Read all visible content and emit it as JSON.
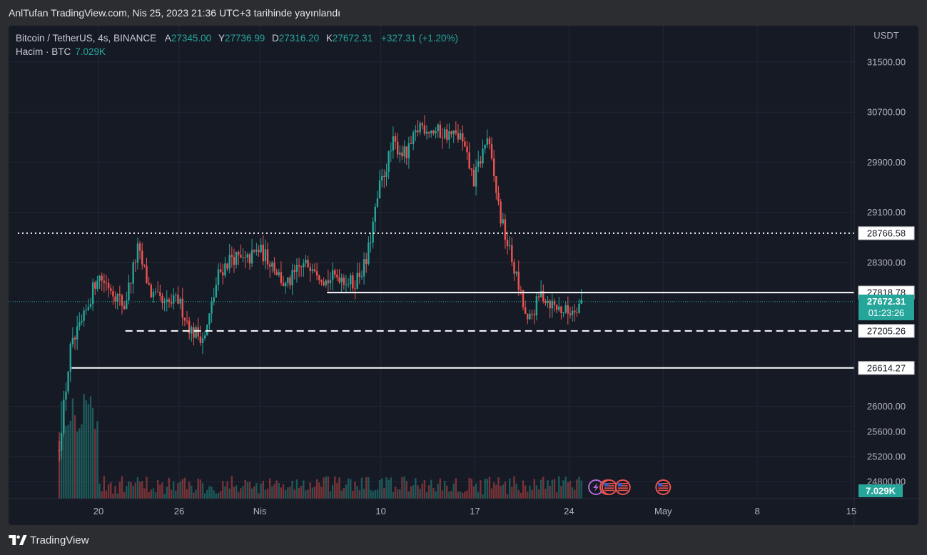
{
  "publication": "AnlTufan TradingView.com, Nis 25, 2023 21:36 UTC+3 tarihinde yayınlandı",
  "footer": {
    "brand": "TradingView",
    "logo_icon": "tradingview-logo-icon"
  },
  "legend": {
    "symbol": "Bitcoin / TetherUS, 4s, BINANCE",
    "open_label": "A",
    "open": "27345.00",
    "high_label": "Y",
    "high": "27736.99",
    "low_label": "D",
    "low": "27316.20",
    "close_label": "K",
    "close": "27672.31",
    "change": "+327.31 (+1.20%)",
    "volume_label": "Hacim · BTC",
    "volume": "7.029K"
  },
  "colors": {
    "background": "#161a25",
    "up": "#26a69a",
    "down": "#ef5350",
    "grid": "#232735",
    "text": "#b2b5be",
    "level": "#ffffff"
  },
  "chart_data": {
    "type": "candlestick",
    "currency": "USDT",
    "ylim": [
      24600,
      32000
    ],
    "y_ticks": [
      "31500.00",
      "30700.00",
      "29900.00",
      "29100.00",
      "28300.00",
      "26000.00",
      "25600.00",
      "25200.00",
      "24800.00"
    ],
    "x_ticks": [
      {
        "label": "20",
        "date": "2023-03-20"
      },
      {
        "label": "26",
        "date": "2023-03-26"
      },
      {
        "label": "Nis",
        "date": "2023-04-01"
      },
      {
        "label": "10",
        "date": "2023-04-10"
      },
      {
        "label": "17",
        "date": "2023-04-17"
      },
      {
        "label": "24",
        "date": "2023-04-24"
      },
      {
        "label": "May",
        "date": "2023-05-01"
      },
      {
        "label": "8",
        "date": "2023-05-08"
      },
      {
        "label": "15",
        "date": "2023-05-15"
      }
    ],
    "price_path": [
      [
        "2023-03-17",
        25100
      ],
      [
        "2023-03-18",
        26900
      ],
      [
        "2023-03-19",
        27400
      ],
      [
        "2023-03-20",
        28100
      ],
      [
        "2023-03-21",
        27900
      ],
      [
        "2023-03-22",
        27600
      ],
      [
        "2023-03-23",
        28500
      ],
      [
        "2023-03-24",
        27800
      ],
      [
        "2023-03-25",
        27600
      ],
      [
        "2023-03-26",
        27700
      ],
      [
        "2023-03-27",
        27200
      ],
      [
        "2023-03-28",
        27100
      ],
      [
        "2023-03-29",
        28100
      ],
      [
        "2023-03-30",
        28400
      ],
      [
        "2023-03-31",
        28300
      ],
      [
        "2023-04-01",
        28500
      ],
      [
        "2023-04-02",
        28300
      ],
      [
        "2023-04-03",
        27900
      ],
      [
        "2023-04-04",
        28200
      ],
      [
        "2023-04-05",
        28300
      ],
      [
        "2023-04-06",
        28000
      ],
      [
        "2023-04-07",
        28100
      ],
      [
        "2023-04-08",
        27950
      ],
      [
        "2023-04-09",
        28300
      ],
      [
        "2023-04-10",
        29500
      ],
      [
        "2023-04-11",
        30200
      ],
      [
        "2023-04-12",
        30000
      ],
      [
        "2023-04-13",
        30500
      ],
      [
        "2023-04-14",
        30400
      ],
      [
        "2023-04-15",
        30350
      ],
      [
        "2023-04-16",
        30300
      ],
      [
        "2023-04-17",
        29600
      ],
      [
        "2023-04-18",
        30300
      ],
      [
        "2023-04-19",
        29000
      ],
      [
        "2023-04-20",
        28200
      ],
      [
        "2023-04-21",
        27300
      ],
      [
        "2023-04-22",
        27800
      ],
      [
        "2023-04-23",
        27600
      ],
      [
        "2023-04-24",
        27500
      ],
      [
        "2023-04-25",
        27672
      ]
    ],
    "horizontal_levels": [
      {
        "price": 28766.58,
        "label": "28766.58",
        "style": "dotted",
        "from": "2023-03-14"
      },
      {
        "price": 27818.78,
        "label": "27818.78",
        "style": "solid",
        "from": "2023-04-06"
      },
      {
        "price": 27205.26,
        "label": "27205.26",
        "style": "dashed",
        "from": "2023-03-22"
      },
      {
        "price": 26614.27,
        "label": "26614.27",
        "style": "solid",
        "from": "2023-03-18"
      }
    ],
    "last_price": {
      "price": 27672.31,
      "label": "27672.31",
      "countdown": "01:23:26"
    },
    "volume_last_label": "7.029K",
    "events": [
      {
        "date": "2023-04-26",
        "icon": "lightning-event-icon"
      },
      {
        "date": "2023-04-26",
        "icon": "us-flag-event-icon"
      },
      {
        "date": "2023-04-27",
        "icon": "us-flag-event-icon"
      },
      {
        "date": "2023-04-28",
        "icon": "us-flag-event-icon"
      },
      {
        "date": "2023-05-01",
        "icon": "us-flag-event-icon"
      }
    ]
  }
}
